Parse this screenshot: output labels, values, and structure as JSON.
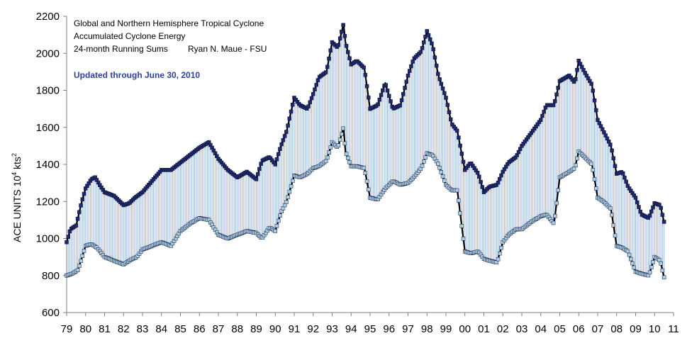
{
  "chart_data": {
    "type": "line",
    "title_lines": [
      "Global and Northern Hemisphere Tropical Cyclone",
      "Accumulated Cyclone Energy",
      "24-month Running Sums"
    ],
    "author": "Ryan N. Maue - FSU",
    "updated": "Updated through June 30, 2010",
    "ylabel": "ACE UNITS 10",
    "ylabel_sup": "4",
    "ylabel_unit": " kts",
    "ylabel_sup2": "2",
    "xlim": [
      1979,
      2011
    ],
    "ylim": [
      600,
      2200
    ],
    "yticks": [
      600,
      800,
      1000,
      1200,
      1400,
      1600,
      1800,
      2000,
      2200
    ],
    "xtick_labels": [
      "79",
      "80",
      "81",
      "82",
      "83",
      "84",
      "85",
      "86",
      "87",
      "88",
      "89",
      "90",
      "91",
      "92",
      "93",
      "94",
      "95",
      "96",
      "97",
      "98",
      "99",
      "00",
      "01",
      "02",
      "03",
      "04",
      "05",
      "06",
      "07",
      "08",
      "09",
      "10",
      "11"
    ],
    "colors": {
      "global": "#1f2a6e",
      "nh": "#a9cfe6",
      "fill": "#9fb8de",
      "line": "#000000"
    },
    "series": [
      {
        "key": "global",
        "x": [
          1979.0,
          1979.2,
          1979.5,
          1979.8,
          1980.0,
          1980.3,
          1980.5,
          1980.8,
          1981.0,
          1981.5,
          1982.0,
          1982.3,
          1982.6,
          1983.0,
          1983.5,
          1984.0,
          1984.5,
          1985.0,
          1985.5,
          1986.0,
          1986.5,
          1987.0,
          1987.5,
          1988.0,
          1988.5,
          1989.0,
          1989.3,
          1989.7,
          1990.0,
          1990.3,
          1990.6,
          1991.0,
          1991.3,
          1991.7,
          1992.0,
          1992.3,
          1992.7,
          1993.0,
          1993.3,
          1993.6,
          1993.7,
          1994.0,
          1994.3,
          1994.7,
          1995.0,
          1995.4,
          1995.8,
          1996.2,
          1996.6,
          1997.0,
          1997.3,
          1997.7,
          1998.0,
          1998.3,
          1998.6,
          1999.0,
          1999.3,
          1999.6,
          2000.0,
          2000.3,
          2000.7,
          2001.0,
          2001.3,
          2001.7,
          2002.0,
          2002.3,
          2002.7,
          2003.0,
          2003.5,
          2004.0,
          2004.3,
          2004.7,
          2005.0,
          2005.5,
          2005.8,
          2006.0,
          2006.3,
          2006.7,
          2007.0,
          2007.3,
          2007.7,
          2008.0,
          2008.3,
          2008.6,
          2009.0,
          2009.3,
          2009.7,
          2010.0,
          2010.3,
          2010.5
        ],
        "values": [
          980,
          1050,
          1070,
          1200,
          1270,
          1320,
          1330,
          1280,
          1250,
          1230,
          1180,
          1190,
          1220,
          1250,
          1310,
          1370,
          1370,
          1410,
          1450,
          1490,
          1520,
          1430,
          1370,
          1330,
          1360,
          1320,
          1420,
          1440,
          1400,
          1500,
          1580,
          1760,
          1720,
          1700,
          1780,
          1870,
          1900,
          2060,
          2030,
          2160,
          2060,
          1940,
          1960,
          1920,
          1700,
          1720,
          1840,
          1700,
          1720,
          1880,
          1970,
          2010,
          2120,
          2040,
          1880,
          1760,
          1620,
          1580,
          1370,
          1410,
          1350,
          1250,
          1280,
          1290,
          1360,
          1410,
          1440,
          1500,
          1570,
          1640,
          1720,
          1720,
          1850,
          1880,
          1840,
          1960,
          1900,
          1830,
          1640,
          1580,
          1500,
          1350,
          1360,
          1280,
          1220,
          1130,
          1110,
          1190,
          1180,
          1090
        ]
      },
      {
        "key": "nh",
        "x": [
          1979.0,
          1979.3,
          1979.6,
          1980.0,
          1980.3,
          1980.6,
          1981.0,
          1981.5,
          1982.0,
          1982.3,
          1982.7,
          1983.0,
          1983.5,
          1984.0,
          1984.5,
          1985.0,
          1985.5,
          1986.0,
          1986.5,
          1987.0,
          1987.5,
          1988.0,
          1988.5,
          1989.0,
          1989.3,
          1989.7,
          1990.0,
          1990.3,
          1990.6,
          1991.0,
          1991.3,
          1991.7,
          1992.0,
          1992.3,
          1992.7,
          1993.0,
          1993.3,
          1993.6,
          1993.7,
          1994.0,
          1994.3,
          1994.7,
          1995.0,
          1995.4,
          1995.8,
          1996.2,
          1996.6,
          1997.0,
          1997.3,
          1997.7,
          1998.0,
          1998.3,
          1998.6,
          1999.0,
          1999.3,
          1999.6,
          2000.0,
          2000.3,
          2000.7,
          2001.0,
          2001.3,
          2001.7,
          2002.0,
          2002.3,
          2002.7,
          2003.0,
          2003.5,
          2004.0,
          2004.3,
          2004.7,
          2005.0,
          2005.5,
          2005.8,
          2006.0,
          2006.3,
          2006.7,
          2007.0,
          2007.3,
          2007.7,
          2008.0,
          2008.3,
          2008.6,
          2009.0,
          2009.3,
          2009.7,
          2010.0,
          2010.3,
          2010.5
        ],
        "values": [
          800,
          810,
          830,
          960,
          970,
          950,
          900,
          880,
          860,
          880,
          900,
          940,
          960,
          980,
          960,
          1040,
          1080,
          1110,
          1100,
          1020,
          1000,
          1020,
          1040,
          1030,
          1000,
          1060,
          1040,
          1140,
          1200,
          1340,
          1330,
          1350,
          1380,
          1390,
          1420,
          1520,
          1490,
          1600,
          1470,
          1390,
          1390,
          1380,
          1220,
          1210,
          1270,
          1310,
          1290,
          1300,
          1330,
          1380,
          1460,
          1450,
          1400,
          1290,
          1260,
          1260,
          930,
          920,
          930,
          890,
          880,
          870,
          980,
          1020,
          1050,
          1050,
          1090,
          1120,
          1130,
          1080,
          1330,
          1360,
          1380,
          1470,
          1440,
          1400,
          1220,
          1200,
          1160,
          960,
          950,
          930,
          820,
          810,
          800,
          900,
          880,
          790
        ]
      }
    ]
  }
}
